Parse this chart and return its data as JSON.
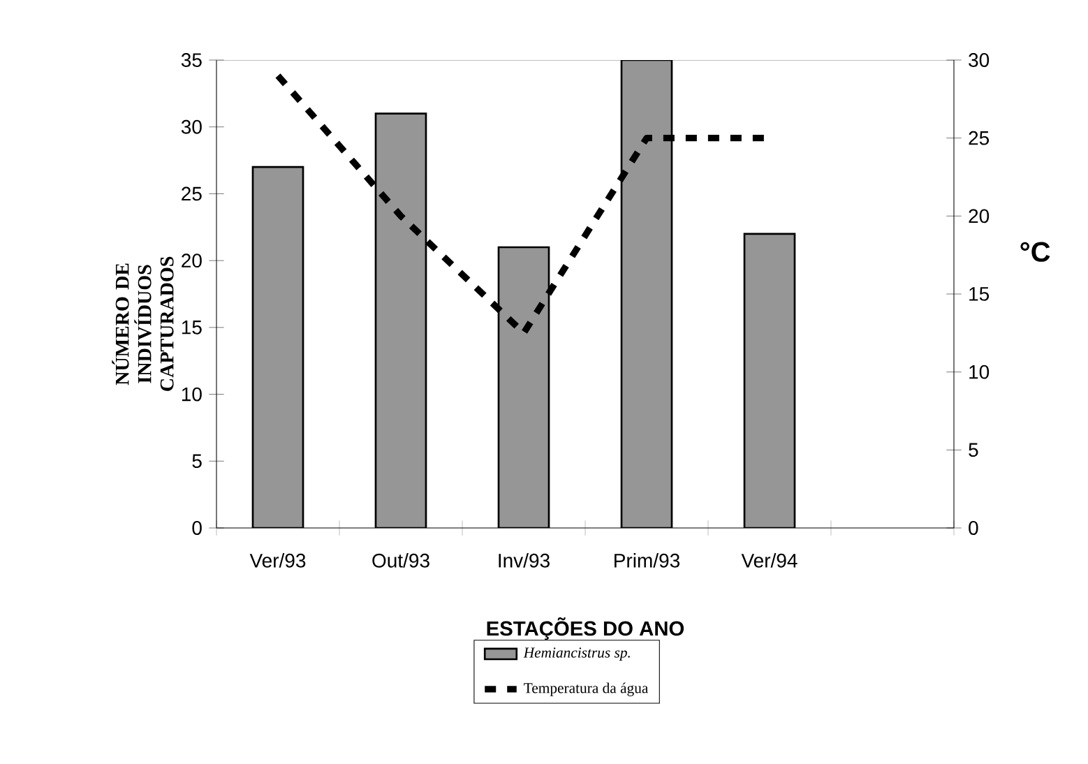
{
  "chart_data": {
    "type": "bar",
    "xlabel": "ESTAÇÕES DO ANO",
    "ylabel": "NÚMERO DE INDIVÍDUOS CAPTURADOS",
    "y2label": "°C",
    "categories": [
      "Ver/93",
      "Out/93",
      "Inv/93",
      "Prim/93",
      "Ver/94",
      null
    ],
    "series": [
      {
        "name": "Hemiancistrus sp.",
        "color": "#969696",
        "values": [
          27,
          31,
          21,
          35,
          22,
          null
        ]
      },
      {
        "name": "Temperatura da água",
        "type": "line",
        "axis": "y2",
        "color": "#000000",
        "line_style": "dashed",
        "values": [
          29,
          20,
          12.5,
          25,
          25,
          null
        ]
      }
    ],
    "ylim": [
      0,
      35
    ],
    "yticks": [
      0,
      5,
      10,
      15,
      20,
      25,
      30,
      35
    ],
    "y2lim": [
      0,
      30
    ],
    "y2ticks": [
      0,
      5,
      10,
      15,
      20,
      25,
      30
    ],
    "grid": false,
    "legend": "bottom",
    "marker": "none"
  }
}
